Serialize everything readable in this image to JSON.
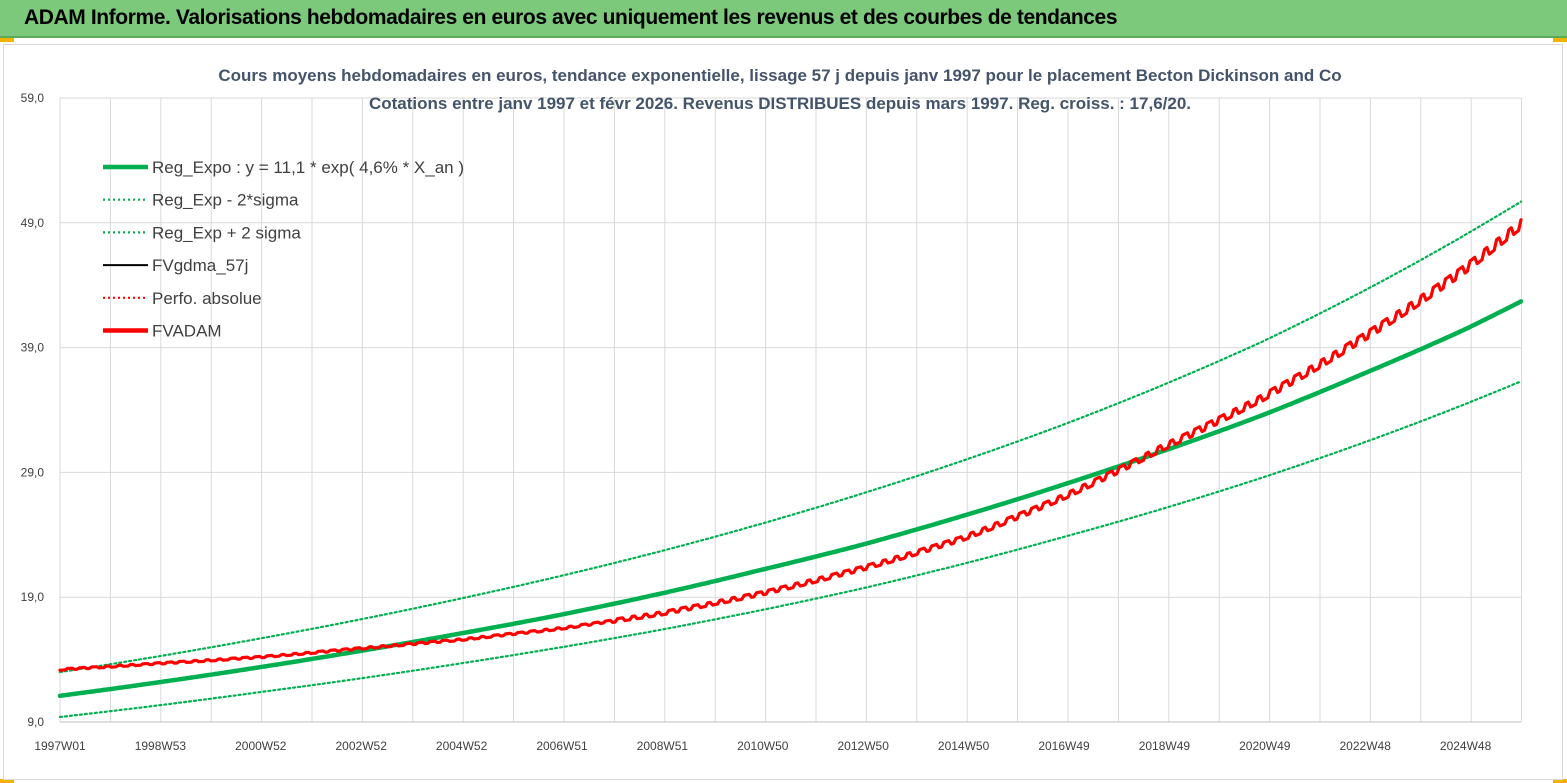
{
  "header": {
    "title": "ADAM Informe. Valorisations hebdomadaires en euros avec uniquement les revenus et des courbes de tendances"
  },
  "colors": {
    "header_bg": "#7cc97c",
    "green": "#00b050",
    "red": "#ff0000",
    "black": "#000000",
    "grid": "#d9d9d9"
  },
  "chart_data": {
    "type": "line",
    "title": "Cours moyens hebdomadaires en euros, tendance exponentielle, lissage 57 j depuis janv 1997 pour le placement Becton Dickinson and Co",
    "subtitle": "Cotations entre janv 1997 et févr 2026. Revenus DISTRIBUES depuis mars 1997. Reg. croiss. : 17,6/20.",
    "xlabel": "",
    "ylabel": "",
    "ylim": [
      9.0,
      59.0
    ],
    "xlim": [
      1997.0,
      2026.15
    ],
    "y_ticks": [
      "59,0",
      "49,0",
      "39,0",
      "29,0",
      "19,0",
      "9,0"
    ],
    "x_ticks": [
      "1997W01",
      "1998W53",
      "2000W52",
      "2002W52",
      "2004W52",
      "2006W51",
      "2008W51",
      "2010W50",
      "2012W50",
      "2014W50",
      "2016W49",
      "2018W49",
      "2020W49",
      "2022W48",
      "2024W48"
    ],
    "grid": true,
    "legend_position": "top-left",
    "series": [
      {
        "name": "Reg_Expo : y = 11,1 * exp( 4,6% *  X_an )",
        "style": "solid-thick",
        "color": "#00b050",
        "x": [
          1997,
          1999,
          2001,
          2003,
          2005,
          2007,
          2009,
          2011,
          2013,
          2015,
          2017,
          2019,
          2021,
          2023,
          2025,
          2026.15
        ],
        "values": [
          11.1,
          12.2,
          13.4,
          14.7,
          16.1,
          17.6,
          19.3,
          21.2,
          23.2,
          25.5,
          28.0,
          30.7,
          33.6,
          36.9,
          40.4,
          42.7
        ]
      },
      {
        "name": "Reg_Exp - 2*sigma",
        "style": "dotted",
        "color": "#00b050",
        "x": [
          1997,
          2001,
          2005,
          2009,
          2013,
          2017,
          2021,
          2026.15
        ],
        "values": [
          9.4,
          11.4,
          13.7,
          16.4,
          19.7,
          23.8,
          28.6,
          36.3
        ]
      },
      {
        "name": "Reg_Exp + 2 sigma",
        "style": "dotted",
        "color": "#00b050",
        "x": [
          1997,
          2001,
          2005,
          2009,
          2013,
          2017,
          2021,
          2026.15
        ],
        "values": [
          13.0,
          15.7,
          18.9,
          22.7,
          27.3,
          32.8,
          39.5,
          50.7
        ]
      },
      {
        "name": "FVgdma_57j",
        "style": "solid",
        "color": "#000000",
        "x": [
          1997,
          1999,
          2001,
          2003,
          2005,
          2007,
          2009,
          2011,
          2013,
          2015,
          2017,
          2019,
          2021,
          2023,
          2025,
          2026.15
        ],
        "values": [
          13.2,
          13.7,
          14.2,
          14.9,
          15.6,
          16.5,
          17.7,
          19.3,
          21.3,
          23.7,
          27.0,
          31.0,
          35.0,
          39.8,
          45.2,
          48.9
        ]
      },
      {
        "name": "Perfo. absolue",
        "style": "dotted",
        "color": "#ff0000",
        "x": [
          1997,
          1999,
          2001,
          2003,
          2005,
          2007,
          2009,
          2011,
          2013,
          2015,
          2017,
          2019,
          2021,
          2023,
          2025,
          2026.15
        ],
        "values": [
          13.2,
          13.7,
          14.2,
          14.9,
          15.6,
          16.5,
          17.7,
          19.3,
          21.3,
          23.7,
          27.0,
          31.0,
          35.0,
          39.8,
          45.2,
          48.9
        ]
      },
      {
        "name": "FVADAM",
        "style": "solid-thick",
        "color": "#ff0000",
        "x": [
          1997,
          1999,
          2001,
          2003,
          2005,
          2007,
          2009,
          2011,
          2013,
          2015,
          2017,
          2019,
          2021,
          2023,
          2025,
          2026.15
        ],
        "values": [
          13.2,
          13.7,
          14.2,
          14.9,
          15.6,
          16.5,
          17.7,
          19.3,
          21.3,
          23.7,
          27.0,
          31.0,
          35.0,
          39.8,
          45.2,
          48.9
        ]
      }
    ]
  }
}
